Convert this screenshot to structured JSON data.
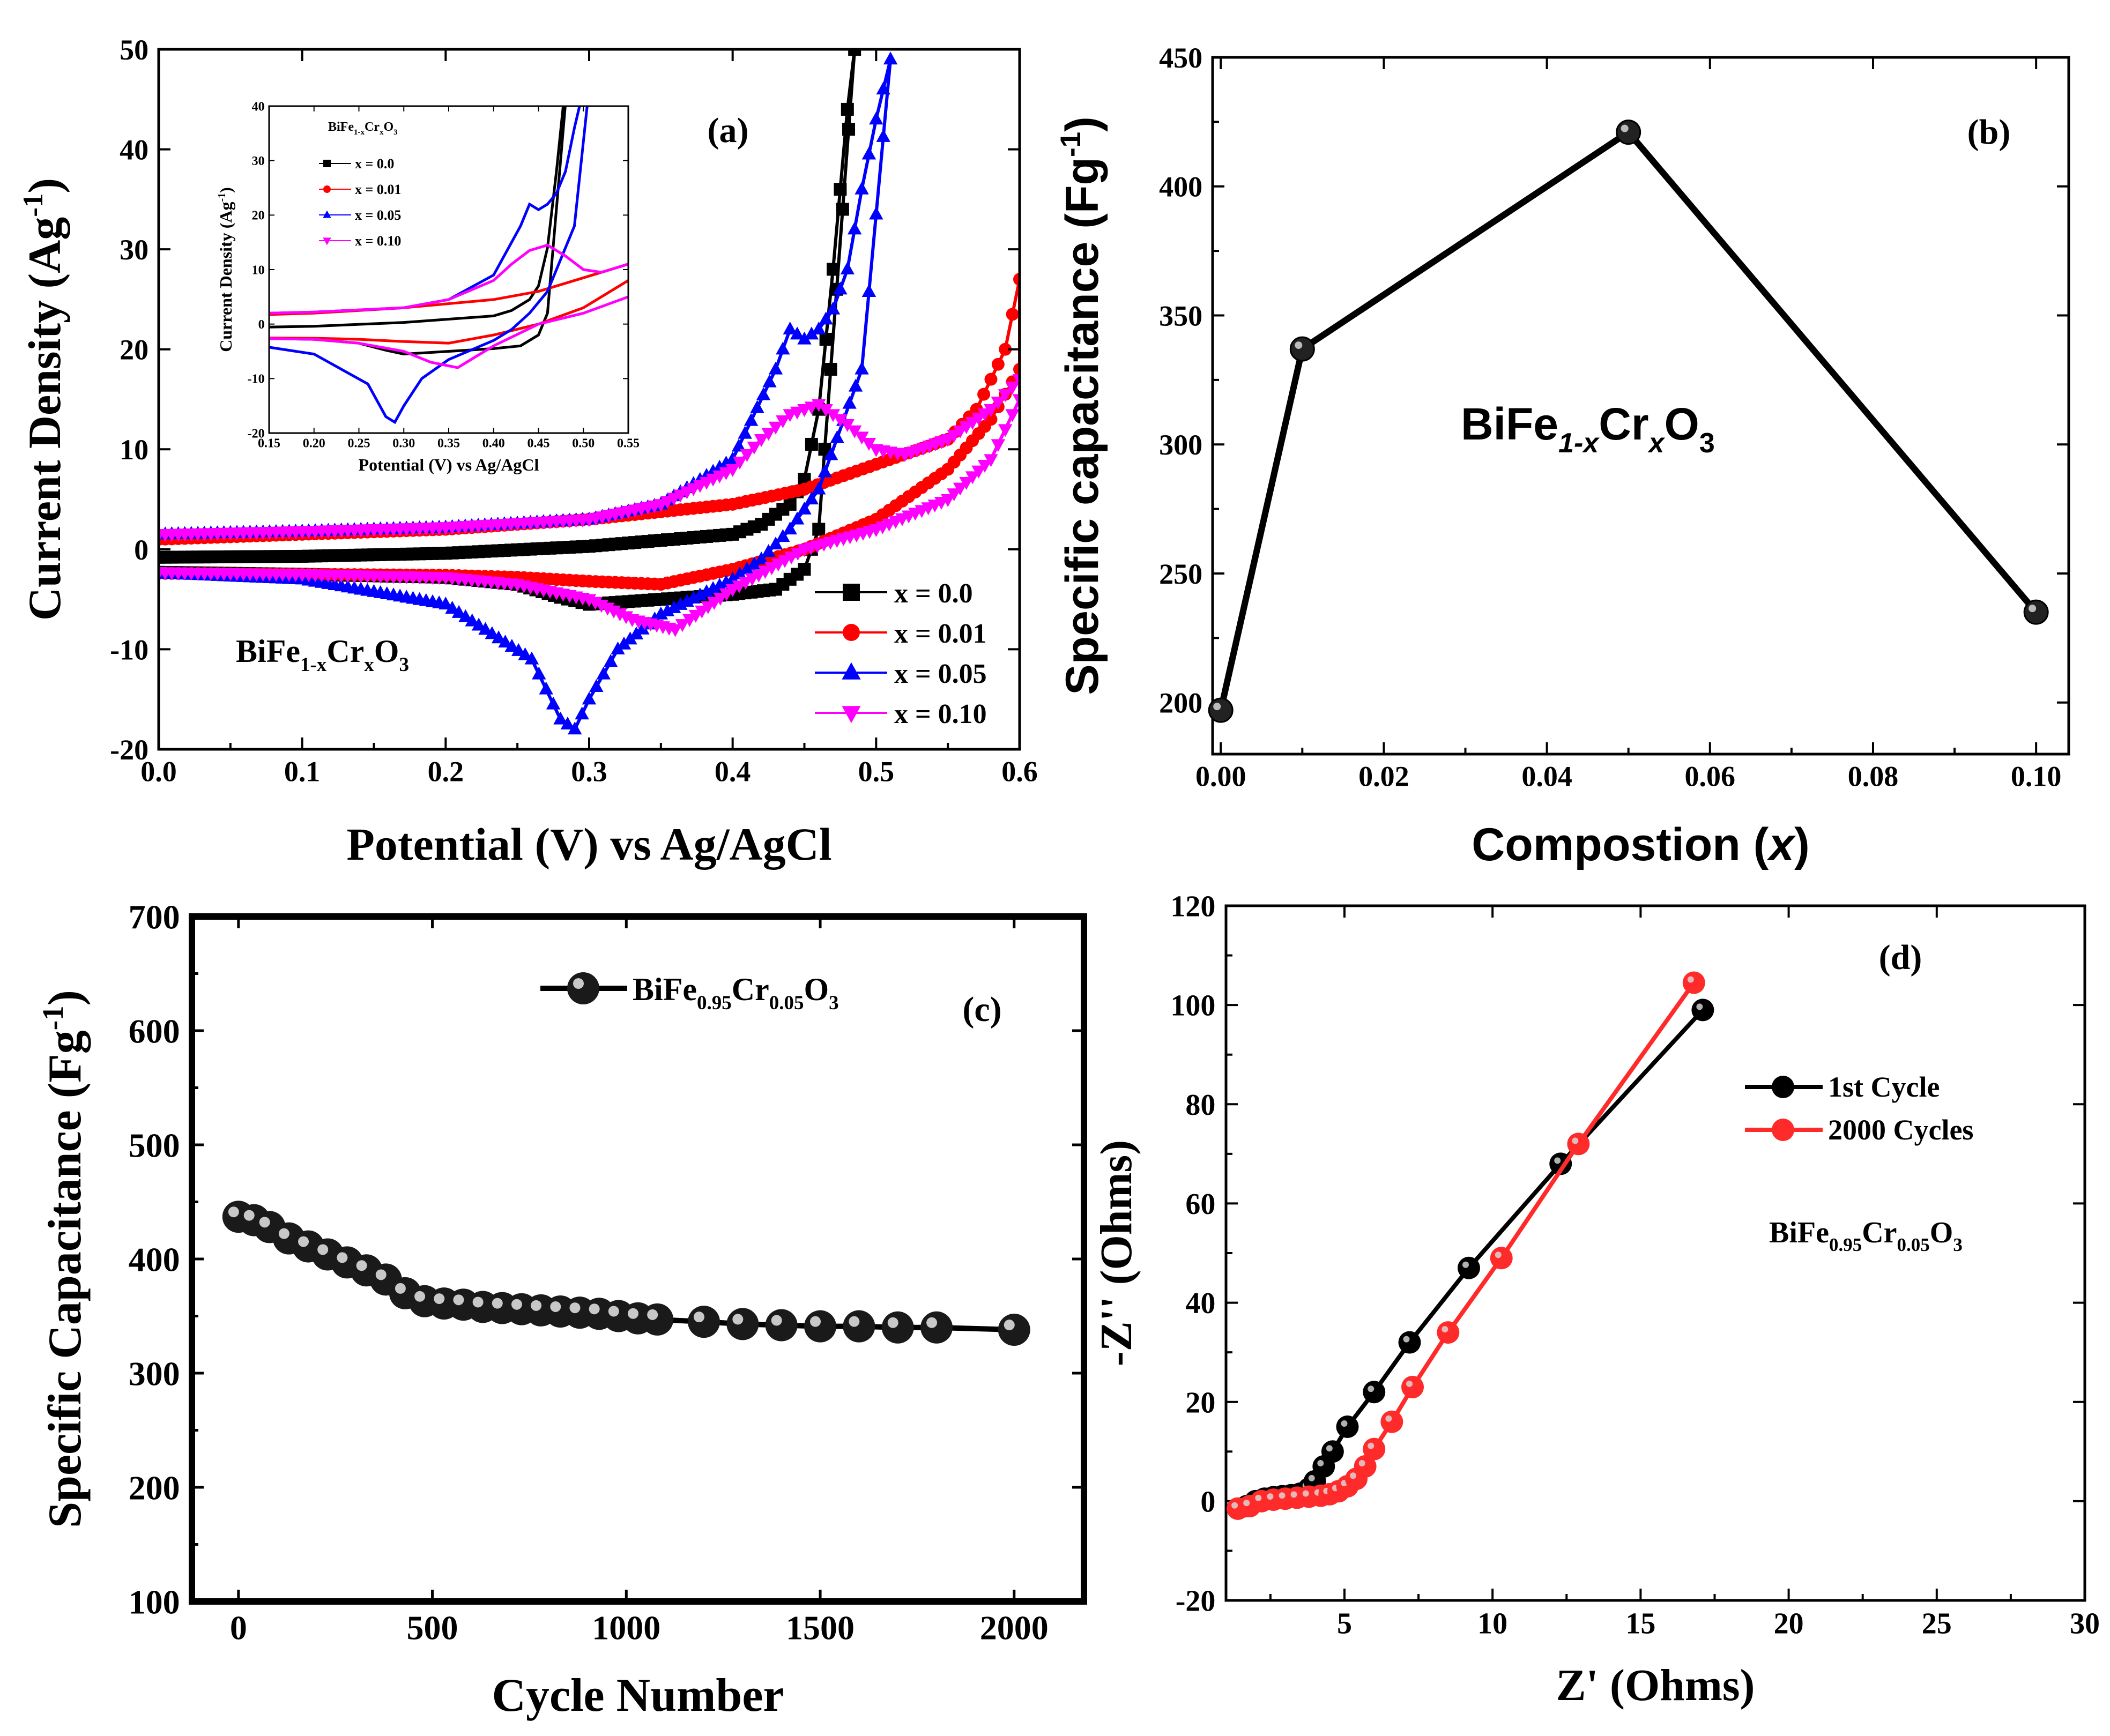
{
  "chart_data": [
    {
      "panel": "a",
      "type": "line",
      "panel_label": "(a)",
      "xlabel": "Potential (V) vs Ag/AgCl",
      "ylabel": "Current Density (Ag",
      "ylabel_sup": "-1",
      "ylabel_close": ")",
      "xlim": [
        0.0,
        0.6
      ],
      "ylim": [
        -20,
        50
      ],
      "xticks": [
        "0.0",
        "0.1",
        "0.2",
        "0.3",
        "0.4",
        "0.5",
        "0.6"
      ],
      "yticks": [
        "-20",
        "-10",
        "0",
        "10",
        "20",
        "30",
        "40",
        "50"
      ],
      "legend_position": "bottom-right",
      "annotation": {
        "base": "BiFe",
        "sub1": "1-x",
        "mid": "Cr",
        "sub2": "x",
        "end": "O",
        "sub3": "3"
      },
      "series": [
        {
          "name": "x = 0.0",
          "color": "#000000",
          "marker": "square",
          "anodic": [
            [
              0,
              -0.8
            ],
            [
              0.1,
              -0.7
            ],
            [
              0.2,
              -0.4
            ],
            [
              0.3,
              0.3
            ],
            [
              0.4,
              1.5
            ],
            [
              0.42,
              2.5
            ],
            [
              0.44,
              4.5
            ],
            [
              0.45,
              7
            ],
            [
              0.46,
              14
            ],
            [
              0.47,
              28
            ],
            [
              0.48,
              44
            ],
            [
              0.485,
              50
            ]
          ],
          "cathodic": [
            [
              0.46,
              2
            ],
            [
              0.45,
              -2
            ],
            [
              0.43,
              -4
            ],
            [
              0.4,
              -4.5
            ],
            [
              0.35,
              -5
            ],
            [
              0.3,
              -5.5
            ],
            [
              0.28,
              -4.8
            ],
            [
              0.25,
              -3.5
            ],
            [
              0.2,
              -2.8
            ],
            [
              0.1,
              -2.5
            ],
            [
              0,
              -2.3
            ]
          ]
        },
        {
          "name": "x = 0.01",
          "color": "#ff0000",
          "marker": "circle",
          "anodic": [
            [
              0,
              1
            ],
            [
              0.1,
              1.5
            ],
            [
              0.2,
              2
            ],
            [
              0.3,
              3
            ],
            [
              0.4,
              4.5
            ],
            [
              0.45,
              6
            ],
            [
              0.5,
              8.5
            ],
            [
              0.55,
              11
            ],
            [
              0.57,
              14
            ],
            [
              0.59,
              20
            ],
            [
              0.6,
              27
            ]
          ],
          "cathodic": [
            [
              0.6,
              18
            ],
            [
              0.58,
              13
            ],
            [
              0.55,
              8
            ],
            [
              0.5,
              3
            ],
            [
              0.45,
              0
            ],
            [
              0.4,
              -2
            ],
            [
              0.35,
              -3.5
            ],
            [
              0.3,
              -3.2
            ],
            [
              0.25,
              -2.8
            ],
            [
              0.2,
              -2.6
            ],
            [
              0.1,
              -2.5
            ],
            [
              0,
              -2.4
            ]
          ]
        },
        {
          "name": "x = 0.05",
          "color": "#0000ff",
          "marker": "triangle",
          "anodic": [
            [
              0,
              1.5
            ],
            [
              0.1,
              1.8
            ],
            [
              0.2,
              2.2
            ],
            [
              0.3,
              3
            ],
            [
              0.35,
              4.5
            ],
            [
              0.4,
              9
            ],
            [
              0.43,
              18
            ],
            [
              0.44,
              22
            ],
            [
              0.45,
              21
            ],
            [
              0.46,
              22
            ],
            [
              0.47,
              24
            ],
            [
              0.48,
              28
            ],
            [
              0.49,
              36
            ],
            [
              0.5,
              43
            ],
            [
              0.51,
              49
            ]
          ],
          "cathodic": [
            [
              0.49,
              18
            ],
            [
              0.46,
              6
            ],
            [
              0.44,
              2
            ],
            [
              0.42,
              -1
            ],
            [
              0.4,
              -3
            ],
            [
              0.35,
              -6.5
            ],
            [
              0.32,
              -10
            ],
            [
              0.3,
              -15
            ],
            [
              0.29,
              -18
            ],
            [
              0.28,
              -17
            ],
            [
              0.26,
              -11
            ],
            [
              0.2,
              -5.5
            ],
            [
              0.1,
              -3
            ],
            [
              0,
              -2.4
            ]
          ]
        },
        {
          "name": "x = 0.10",
          "color": "#ff00ff",
          "marker": "triangle-down",
          "anodic": [
            [
              0,
              1.5
            ],
            [
              0.1,
              1.8
            ],
            [
              0.2,
              2.2
            ],
            [
              0.3,
              3
            ],
            [
              0.35,
              4.5
            ],
            [
              0.4,
              8
            ],
            [
              0.42,
              11
            ],
            [
              0.44,
              13.5
            ],
            [
              0.46,
              14.5
            ],
            [
              0.48,
              12.5
            ],
            [
              0.5,
              10
            ],
            [
              0.52,
              9.5
            ],
            [
              0.55,
              11
            ],
            [
              0.58,
              14
            ],
            [
              0.6,
              17
            ]
          ],
          "cathodic": [
            [
              0.6,
              15
            ],
            [
              0.58,
              9
            ],
            [
              0.55,
              5
            ],
            [
              0.5,
              2
            ],
            [
              0.45,
              0
            ],
            [
              0.4,
              -4
            ],
            [
              0.37,
              -7
            ],
            [
              0.36,
              -8
            ],
            [
              0.33,
              -7
            ],
            [
              0.3,
              -5
            ],
            [
              0.25,
              -3.5
            ],
            [
              0.2,
              -2.8
            ],
            [
              0.1,
              -2.5
            ],
            [
              0,
              -2.3
            ]
          ]
        }
      ],
      "inset": {
        "title": {
          "base": "BiFe",
          "sub1": "1-x",
          "mid": "Cr",
          "sub2": "x",
          "end": "O",
          "sub3": "3"
        },
        "xlabel": "Potential (V) vs Ag/AgCl",
        "ylabel": "Current Density (Ag",
        "ylabel_sup": "-1",
        "ylabel_close": ")",
        "xlim": [
          0.15,
          0.55
        ],
        "ylim": [
          -20,
          40
        ],
        "xticks": [
          "0.15",
          "0.20",
          "0.25",
          "0.30",
          "0.35",
          "0.40",
          "0.45",
          "0.50",
          "0.55"
        ],
        "yticks": [
          "-20",
          "-10",
          "0",
          "10",
          "20",
          "30",
          "40"
        ],
        "legend": [
          "x = 0.0",
          "x = 0.01",
          "x = 0.05",
          "x = 0.10"
        ]
      }
    },
    {
      "panel": "b",
      "type": "line",
      "panel_label": "(b)",
      "xlabel": "Compostion (",
      "xlabel_var": "x",
      "xlabel_close": ")",
      "ylabel": "Specific capacitance (Fg",
      "ylabel_sup": "-1",
      "ylabel_close": ")",
      "xlim": [
        -0.001,
        0.104
      ],
      "ylim": [
        180,
        450
      ],
      "xticks": [
        0.0,
        0.02,
        0.04,
        0.06,
        0.08,
        0.1
      ],
      "xtick_labels": [
        "0.00",
        "0.02",
        "0.04",
        "0.06",
        "0.08",
        "0.10"
      ],
      "yticks": [
        200,
        250,
        300,
        350,
        400,
        450
      ],
      "ytick_labels": [
        "200",
        "250",
        "300",
        "350",
        "400",
        "450"
      ],
      "x": [
        0.0,
        0.01,
        0.05,
        0.1
      ],
      "values": [
        197,
        337,
        421,
        235
      ],
      "annotation": {
        "base": "BiFe",
        "sub1": "1-x",
        "mid": "Cr",
        "sub2": "x",
        "end": "O",
        "sub3": "3"
      }
    },
    {
      "panel": "c",
      "type": "scatter",
      "panel_label": "(c)",
      "xlabel": "Cycle Number",
      "ylabel": "Specific Capacitance (Fg",
      "ylabel_sup": "-1",
      "ylabel_close": ")",
      "xlim": [
        -120,
        2180
      ],
      "ylim": [
        100,
        700
      ],
      "xticks": [
        0,
        500,
        1000,
        1500,
        2000
      ],
      "xtick_labels": [
        "0",
        "500",
        "1000",
        "1500",
        "2000"
      ],
      "yticks": [
        100,
        200,
        300,
        400,
        500,
        600,
        700
      ],
      "ytick_labels": [
        "100",
        "200",
        "300",
        "400",
        "500",
        "600",
        "700"
      ],
      "legend": {
        "base": "BiFe",
        "sub1": "0.95",
        "mid": "Cr",
        "sub2": "0.05",
        "end": "O",
        "sub3": "3"
      },
      "x": [
        0,
        40,
        80,
        130,
        180,
        230,
        280,
        330,
        380,
        430,
        480,
        530,
        580,
        630,
        680,
        730,
        780,
        830,
        880,
        930,
        980,
        1030,
        1080,
        1200,
        1300,
        1400,
        1500,
        1600,
        1700,
        1800,
        2000
      ],
      "values": [
        437,
        434,
        428,
        418,
        411,
        404,
        397,
        390,
        382,
        370,
        363,
        361,
        360,
        358,
        357,
        356,
        355,
        354,
        353,
        352,
        350,
        348,
        347,
        345,
        343,
        342,
        341,
        341,
        340,
        340,
        338
      ]
    },
    {
      "panel": "d",
      "type": "line",
      "panel_label": "(d)",
      "xlabel": "Z' (Ohms)",
      "ylabel": "-Z'' (Ohms)",
      "xlim": [
        1,
        30
      ],
      "ylim": [
        -20,
        120
      ],
      "xticks": [
        5,
        10,
        15,
        20,
        25,
        30
      ],
      "xtick_labels": [
        "5",
        "10",
        "15",
        "20",
        "25",
        "30"
      ],
      "yticks": [
        -20,
        0,
        20,
        40,
        60,
        80,
        100,
        120
      ],
      "ytick_labels": [
        "-20",
        "0",
        "20",
        "40",
        "60",
        "80",
        "100",
        "120"
      ],
      "legend_position": "upper-right",
      "annotation": {
        "base": "BiFe",
        "sub1": "0.95",
        "mid": "Cr",
        "sub2": "0.05",
        "end": "O",
        "sub3": "3"
      },
      "series": [
        {
          "name": "1st Cycle",
          "color": "#000000",
          "x": [
            1.4,
            1.7,
            2.0,
            2.3,
            2.6,
            2.9,
            3.2,
            3.5,
            3.8,
            4.0,
            4.3,
            4.6,
            5.1,
            6.0,
            7.2,
            9.2,
            12.3,
            17.1
          ],
          "y": [
            -1.5,
            -1,
            0,
            0.5,
            0.8,
            1,
            1.2,
            1.5,
            2.5,
            4,
            7,
            10,
            15,
            22,
            32,
            47,
            68,
            99
          ]
        },
        {
          "name": "2000 Cycles",
          "color": "#ff2a2a",
          "x": [
            1.4,
            1.8,
            2.2,
            2.6,
            3.0,
            3.4,
            3.8,
            4.2,
            4.5,
            4.8,
            5.1,
            5.4,
            5.7,
            6.0,
            6.6,
            7.3,
            8.5,
            10.3,
            12.9,
            16.8
          ],
          "y": [
            -1.5,
            -1,
            0,
            0.3,
            0.5,
            0.7,
            0.9,
            1.1,
            1.4,
            2,
            3,
            4.5,
            7,
            10.5,
            16,
            23,
            34,
            49,
            72,
            104.5
          ]
        }
      ]
    }
  ]
}
